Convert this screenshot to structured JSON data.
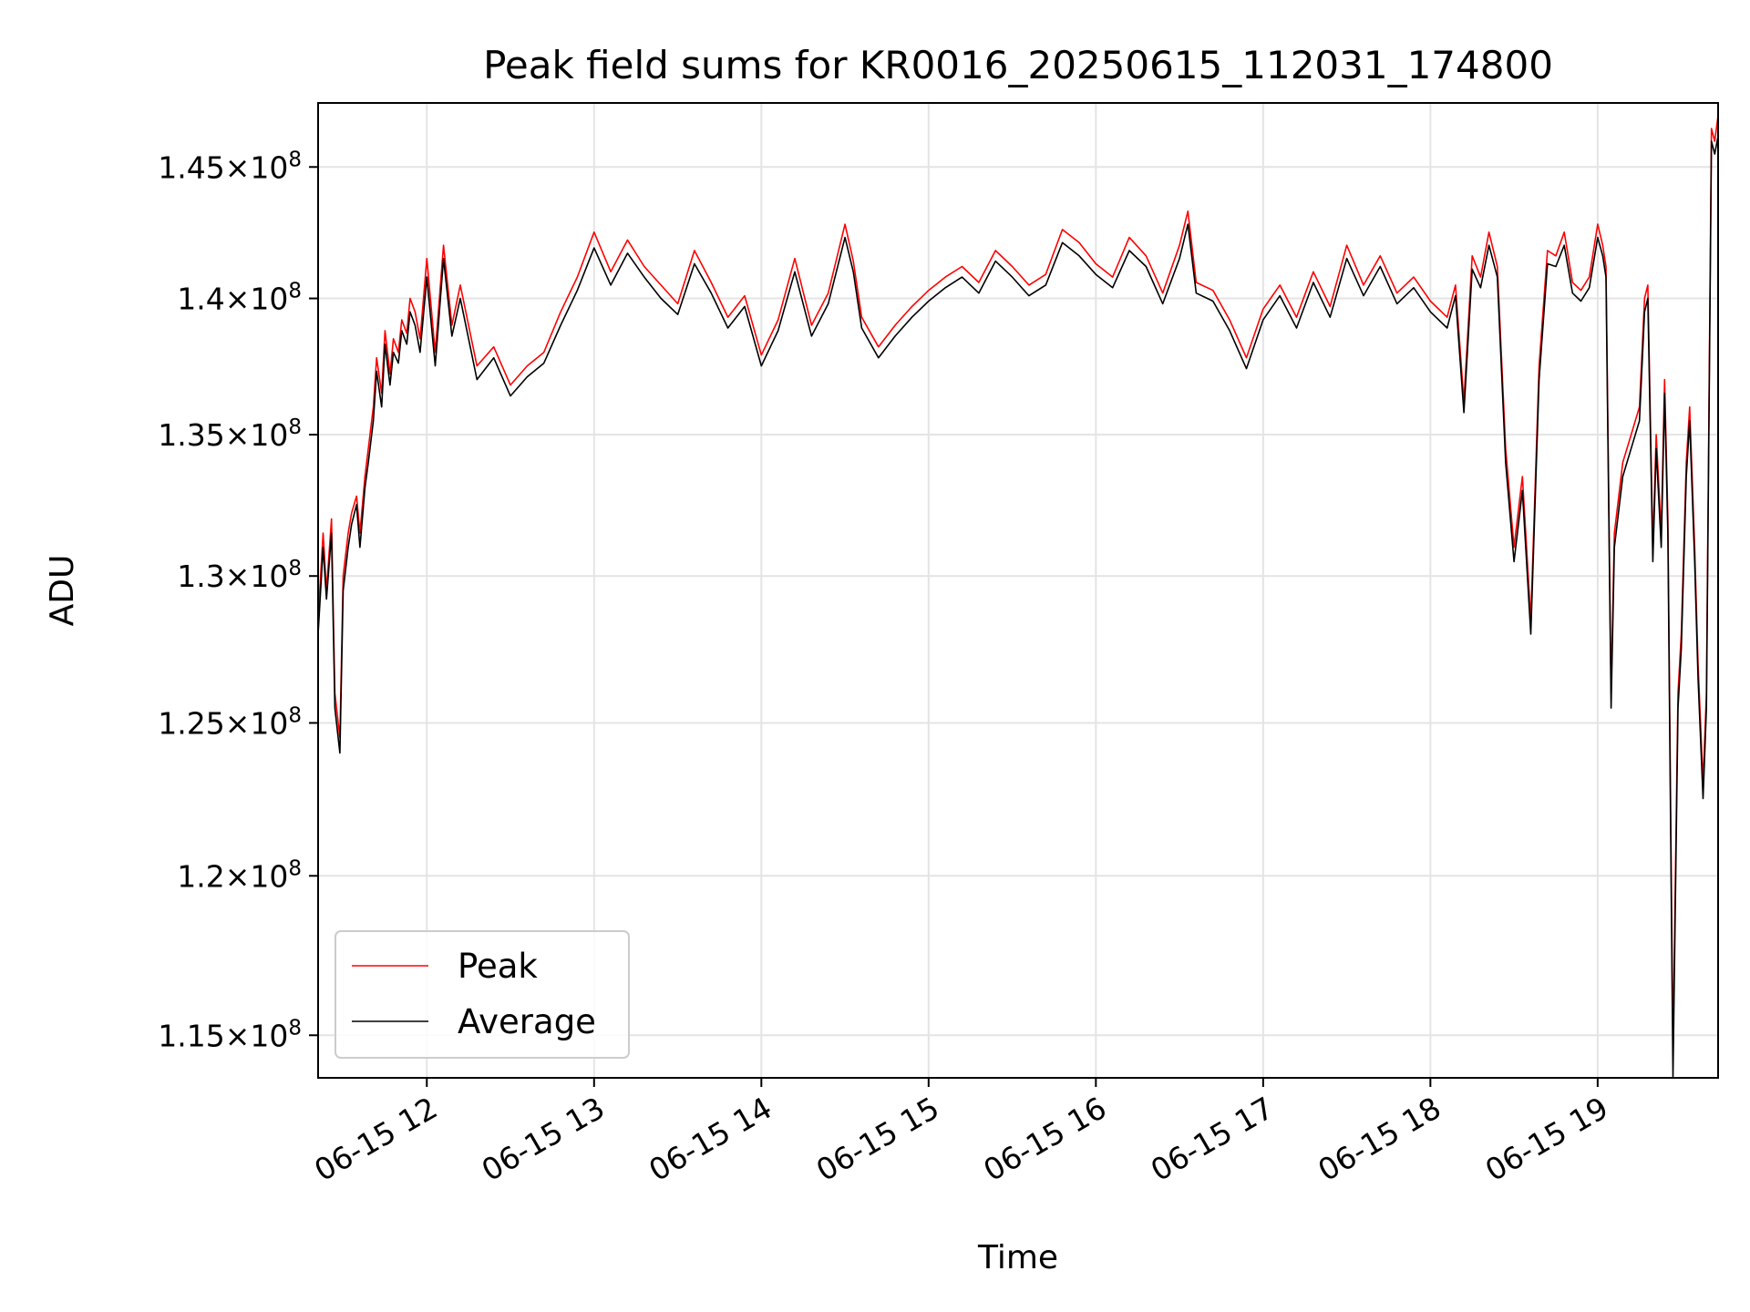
{
  "chart_data": {
    "type": "line",
    "title": "Peak field sums for KR0016_20250615_112031_174800",
    "xlabel": "Time",
    "ylabel": "ADU",
    "x_unit": "hours on 2025-06-15",
    "xlim": [
      11.35,
      19.72
    ],
    "ylim": [
      113700000,
      147500000
    ],
    "y_scale": "log",
    "y_ticks": [
      {
        "value": 115000000,
        "label": "1.15×10^8"
      },
      {
        "value": 120000000,
        "label": "1.2×10^8"
      },
      {
        "value": 125000000,
        "label": "1.25×10^8"
      },
      {
        "value": 130000000,
        "label": "1.3×10^8"
      },
      {
        "value": 135000000,
        "label": "1.35×10^8"
      },
      {
        "value": 140000000,
        "label": "1.4×10^8"
      },
      {
        "value": 145000000,
        "label": "1.45×10^8"
      }
    ],
    "x_ticks": [
      {
        "value": 12,
        "label": "06-15 12"
      },
      {
        "value": 13,
        "label": "06-15 13"
      },
      {
        "value": 14,
        "label": "06-15 14"
      },
      {
        "value": 15,
        "label": "06-15 15"
      },
      {
        "value": 16,
        "label": "06-15 16"
      },
      {
        "value": 17,
        "label": "06-15 17"
      },
      {
        "value": 18,
        "label": "06-15 18"
      },
      {
        "value": 19,
        "label": "06-15 19"
      }
    ],
    "grid": true,
    "legend_position": "lower-left",
    "series": [
      {
        "name": "Peak",
        "color": "#ff0000",
        "x": [
          11.35,
          11.38,
          11.4,
          11.43,
          11.45,
          11.48,
          11.5,
          11.53,
          11.55,
          11.58,
          11.6,
          11.63,
          11.65,
          11.68,
          11.7,
          11.73,
          11.75,
          11.78,
          11.8,
          11.83,
          11.85,
          11.88,
          11.9,
          11.93,
          11.96,
          12.0,
          12.05,
          12.1,
          12.15,
          12.2,
          12.3,
          12.4,
          12.5,
          12.6,
          12.7,
          12.8,
          12.9,
          13.0,
          13.1,
          13.2,
          13.3,
          13.4,
          13.5,
          13.6,
          13.7,
          13.8,
          13.9,
          14.0,
          14.1,
          14.2,
          14.3,
          14.4,
          14.5,
          14.55,
          14.6,
          14.7,
          14.8,
          14.9,
          15.0,
          15.1,
          15.2,
          15.3,
          15.4,
          15.5,
          15.6,
          15.7,
          15.8,
          15.9,
          16.0,
          16.1,
          16.2,
          16.3,
          16.4,
          16.5,
          16.55,
          16.6,
          16.7,
          16.8,
          16.9,
          17.0,
          17.1,
          17.2,
          17.3,
          17.4,
          17.5,
          17.6,
          17.7,
          17.8,
          17.9,
          18.0,
          18.1,
          18.15,
          18.2,
          18.25,
          18.3,
          18.35,
          18.4,
          18.45,
          18.5,
          18.55,
          18.6,
          18.65,
          18.7,
          18.75,
          18.8,
          18.85,
          18.9,
          18.95,
          19.0,
          19.03,
          19.05,
          19.08,
          19.1,
          19.15,
          19.2,
          19.25,
          19.28,
          19.3,
          19.33,
          19.35,
          19.38,
          19.4,
          19.42,
          19.45,
          19.48,
          19.5,
          19.53,
          19.55,
          19.58,
          19.6,
          19.63,
          19.65,
          19.68,
          19.7,
          19.72
        ],
        "values": [
          128500000,
          131500000,
          129500000,
          132000000,
          126000000,
          124500000,
          130000000,
          131500000,
          132200000,
          132800000,
          131500000,
          133500000,
          134500000,
          136000000,
          137800000,
          136500000,
          138800000,
          137200000,
          138500000,
          138000000,
          139200000,
          138700000,
          140000000,
          139500000,
          138500000,
          141500000,
          138000000,
          142000000,
          139000000,
          140500000,
          137500000,
          138200000,
          136800000,
          137500000,
          138000000,
          139500000,
          140800000,
          142500000,
          141000000,
          142200000,
          141200000,
          140500000,
          139800000,
          141800000,
          140600000,
          139300000,
          140100000,
          137900000,
          139200000,
          141500000,
          139000000,
          140200000,
          142800000,
          141400000,
          139300000,
          138200000,
          139000000,
          139700000,
          140300000,
          140800000,
          141200000,
          140600000,
          141800000,
          141200000,
          140500000,
          140900000,
          142600000,
          142100000,
          141300000,
          140800000,
          142300000,
          141600000,
          140200000,
          142000000,
          143300000,
          140600000,
          140300000,
          139200000,
          137800000,
          139600000,
          140500000,
          139300000,
          141000000,
          139700000,
          142000000,
          140500000,
          141600000,
          140200000,
          140800000,
          139900000,
          139300000,
          140500000,
          136200000,
          141600000,
          140800000,
          142500000,
          141200000,
          134500000,
          131000000,
          133500000,
          128500000,
          137500000,
          141800000,
          141600000,
          142500000,
          140600000,
          140300000,
          140800000,
          142800000,
          142000000,
          141200000,
          126000000,
          131500000,
          134000000,
          135000000,
          136000000,
          140000000,
          140500000,
          131000000,
          135000000,
          131500000,
          137000000,
          132000000,
          114500000,
          126000000,
          128000000,
          134000000,
          136000000,
          131000000,
          127000000,
          123000000,
          126000000,
          146500000,
          146000000,
          147000000
        ]
      },
      {
        "name": "Average",
        "color": "#000000",
        "x": [
          11.35,
          11.38,
          11.4,
          11.43,
          11.45,
          11.48,
          11.5,
          11.53,
          11.55,
          11.58,
          11.6,
          11.63,
          11.65,
          11.68,
          11.7,
          11.73,
          11.75,
          11.78,
          11.8,
          11.83,
          11.85,
          11.88,
          11.9,
          11.93,
          11.96,
          12.0,
          12.05,
          12.1,
          12.15,
          12.2,
          12.3,
          12.4,
          12.5,
          12.6,
          12.7,
          12.8,
          12.9,
          13.0,
          13.1,
          13.2,
          13.3,
          13.4,
          13.5,
          13.6,
          13.7,
          13.8,
          13.9,
          14.0,
          14.1,
          14.2,
          14.3,
          14.4,
          14.5,
          14.55,
          14.6,
          14.7,
          14.8,
          14.9,
          15.0,
          15.1,
          15.2,
          15.3,
          15.4,
          15.5,
          15.6,
          15.7,
          15.8,
          15.9,
          16.0,
          16.1,
          16.2,
          16.3,
          16.4,
          16.5,
          16.55,
          16.6,
          16.7,
          16.8,
          16.9,
          17.0,
          17.1,
          17.2,
          17.3,
          17.4,
          17.5,
          17.6,
          17.7,
          17.8,
          17.9,
          18.0,
          18.1,
          18.15,
          18.2,
          18.25,
          18.3,
          18.35,
          18.4,
          18.45,
          18.5,
          18.55,
          18.6,
          18.65,
          18.7,
          18.75,
          18.8,
          18.85,
          18.9,
          18.95,
          19.0,
          19.03,
          19.05,
          19.08,
          19.1,
          19.15,
          19.2,
          19.25,
          19.28,
          19.3,
          19.33,
          19.35,
          19.38,
          19.4,
          19.42,
          19.45,
          19.48,
          19.5,
          19.53,
          19.55,
          19.58,
          19.6,
          19.63,
          19.65,
          19.68,
          19.7,
          19.72
        ],
        "values": [
          128000000,
          131000000,
          129200000,
          131500000,
          125500000,
          124000000,
          129500000,
          131000000,
          131800000,
          132500000,
          131000000,
          133100000,
          134000000,
          135500000,
          137300000,
          136000000,
          138300000,
          136800000,
          138000000,
          137600000,
          138800000,
          138300000,
          139500000,
          139000000,
          138000000,
          140800000,
          137500000,
          141500000,
          138600000,
          140000000,
          137000000,
          137800000,
          136400000,
          137100000,
          137600000,
          139000000,
          140300000,
          141900000,
          140500000,
          141700000,
          140800000,
          140000000,
          139400000,
          141300000,
          140200000,
          138900000,
          139700000,
          137500000,
          138800000,
          141000000,
          138600000,
          139800000,
          142300000,
          141000000,
          138900000,
          137800000,
          138600000,
          139300000,
          139900000,
          140400000,
          140800000,
          140200000,
          141400000,
          140800000,
          140100000,
          140500000,
          142100000,
          141600000,
          140900000,
          140400000,
          141800000,
          141200000,
          139800000,
          141500000,
          142800000,
          140200000,
          139900000,
          138800000,
          137400000,
          139200000,
          140100000,
          138900000,
          140600000,
          139300000,
          141500000,
          140100000,
          141200000,
          139800000,
          140400000,
          139500000,
          138900000,
          140100000,
          135800000,
          141100000,
          140400000,
          142000000,
          140800000,
          134000000,
          130500000,
          133000000,
          128000000,
          137000000,
          141300000,
          141200000,
          142000000,
          140200000,
          139900000,
          140400000,
          142300000,
          141600000,
          140800000,
          125500000,
          131000000,
          133500000,
          134500000,
          135500000,
          139500000,
          140000000,
          130500000,
          134500000,
          131000000,
          136500000,
          131500000,
          113700000,
          125500000,
          127500000,
          133500000,
          135500000,
          130500000,
          126500000,
          122500000,
          125500000,
          146000000,
          145500000,
          146200000
        ]
      }
    ]
  }
}
